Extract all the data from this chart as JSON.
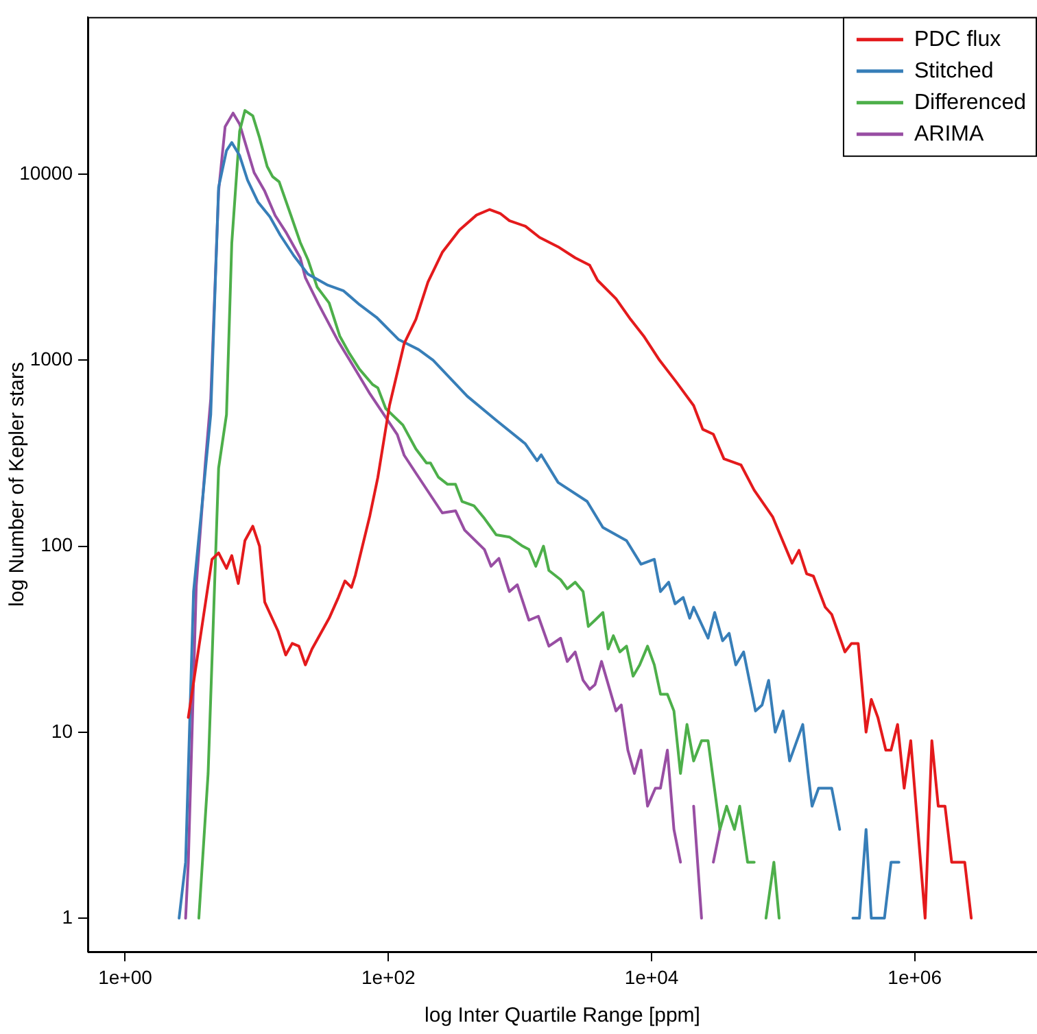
{
  "chart_data": {
    "type": "line",
    "xlabel": "log Inter Quartile Range [ppm]",
    "ylabel": "log Number of Kepler stars",
    "log": "xy",
    "grid": false,
    "legend": "top right",
    "marker": "none",
    "line_style": "solid",
    "xlim": [
      0.52,
      8500000
    ],
    "ylim": [
      0.66,
      70000
    ],
    "xticks": [
      {
        "value": 1,
        "label": "1e+00"
      },
      {
        "value": 100,
        "label": "1e+02"
      },
      {
        "value": 10000,
        "label": "1e+04"
      },
      {
        "value": 1000000,
        "label": "1e+06"
      }
    ],
    "yticks": [
      1,
      10,
      100,
      1000,
      10000
    ],
    "series": [
      {
        "name": "PDC flux",
        "color": "#e41a1c",
        "x": [
          3.02,
          4.57,
          5.13,
          5.89,
          6.46,
          7.24,
          8.13,
          9.33,
          10.5,
          11.5,
          14.5,
          16.6,
          18.6,
          20.9,
          23.4,
          26.3,
          35.5,
          41.7,
          46.8,
          52.5,
          56.2,
          72.4,
          83.2,
          102,
          132,
          162,
          200,
          257,
          347,
          468,
          589,
          708,
          832,
          1100,
          1410,
          1950,
          2630,
          3390,
          3890,
          5370,
          6920,
          8710,
          11500,
          15500,
          20900,
          24500,
          29500,
          35500,
          47900,
          60300,
          83200,
          117000,
          132000,
          151000,
          170000,
          209000,
          234000,
          295000,
          331000,
          372000,
          427000,
          468000,
          525000,
          603000,
          661000,
          741000,
          832000,
          933000,
          1200000,
          1350000,
          1510000,
          1700000,
          1910000,
          2400000,
          2690000
        ],
        "values": [
          12,
          85,
          92,
          76,
          89,
          63,
          107,
          128,
          100,
          50,
          35,
          26,
          30,
          29,
          23,
          28,
          41,
          53,
          65,
          60,
          70,
          146,
          234,
          570,
          1230,
          1660,
          2630,
          3800,
          5010,
          6030,
          6460,
          6150,
          5620,
          5250,
          4570,
          4070,
          3550,
          3240,
          2690,
          2140,
          1660,
          1350,
          1000,
          760,
          570,
          425,
          400,
          295,
          273,
          200,
          144,
          81,
          95,
          71,
          69,
          47,
          43,
          27,
          30,
          30,
          10,
          15,
          12,
          8,
          8,
          11,
          5,
          9,
          1,
          9,
          4,
          4,
          2,
          2,
          1
        ]
      },
      {
        "name": "Stitched",
        "color": "#377eb8",
        "x": [
          2.57,
          2.88,
          3.31,
          3.8,
          4.47,
          5.13,
          5.89,
          6.46,
          7.41,
          8.51,
          10.2,
          12.6,
          15.1,
          19.1,
          24.5,
          34.7,
          45.7,
          60.3,
          81.3,
          120,
          170,
          219,
          398,
          661,
          1100,
          1350,
          1450,
          1950,
          3240,
          4270,
          6460,
          8320,
          10500,
          11700,
          13500,
          15100,
          17400,
          19500,
          20900,
          26900,
          30200,
          34700,
          38900,
          43700,
          50100,
          61700,
          69200,
          77600,
          87100,
          100000,
          112000,
          141000,
          155000,
          166000,
          186000,
          234000,
          269000,
          305000,
          339000,
          380000,
          427000,
          468000,
          589000,
          661000,
          759000
        ],
        "values": [
          1,
          2,
          57,
          155,
          510,
          8500,
          13400,
          14800,
          12600,
          9300,
          7100,
          5900,
          4700,
          3650,
          2900,
          2530,
          2360,
          1990,
          1700,
          1290,
          1140,
          1000,
          640,
          475,
          355,
          288,
          310,
          220,
          174,
          126,
          107,
          80,
          85,
          57,
          64,
          49,
          53,
          41,
          47,
          32,
          44,
          31,
          34,
          23,
          27,
          13,
          14,
          19,
          10,
          13,
          7,
          11,
          6,
          4,
          5,
          5,
          3,
          null,
          1,
          1,
          3,
          1,
          1,
          2,
          2
        ]
      },
      {
        "name": "Differenced",
        "color": "#4daf4a",
        "x": [
          3.63,
          4.27,
          5.13,
          5.89,
          6.46,
          7.41,
          8.13,
          9.33,
          10.5,
          12,
          13.2,
          14.8,
          18.2,
          21.4,
          24.5,
          28.8,
          35.5,
          42.7,
          50.1,
          60.3,
          75.9,
          83.2,
          95.5,
          129,
          162,
          195,
          209,
          240,
          282,
          324,
          363,
          447,
          537,
          661,
          832,
          1050,
          1170,
          1320,
          1510,
          1660,
          2040,
          2290,
          2630,
          3020,
          3310,
          3720,
          4270,
          4680,
          5130,
          5750,
          6460,
          7240,
          8130,
          9330,
          10500,
          11700,
          13200,
          14800,
          16600,
          18600,
          20900,
          24000,
          26900,
          33100,
          37200,
          42700,
          46800,
          53700,
          60300,
          66100,
          74100,
          85100,
          93300
        ],
        "values": [
          1,
          6,
          263,
          510,
          4260,
          17000,
          22000,
          20600,
          15700,
          11000,
          9700,
          9100,
          6000,
          4300,
          3470,
          2470,
          2030,
          1350,
          1100,
          895,
          740,
          710,
          550,
          448,
          333,
          280,
          280,
          235,
          215,
          215,
          174,
          165,
          141,
          115,
          112,
          100,
          96,
          78,
          100,
          74,
          66,
          59,
          64,
          57,
          37,
          40,
          44,
          28,
          33,
          27,
          29,
          20,
          23,
          29,
          23,
          16,
          16,
          13,
          6,
          11,
          7,
          9,
          9,
          3,
          4,
          3,
          4,
          2,
          2,
          null,
          1,
          2,
          1
        ]
      },
      {
        "name": "ARIMA",
        "color": "#984ea3",
        "x": [
          2.88,
          3.02,
          3.47,
          4.07,
          4.47,
          5.13,
          5.75,
          6.61,
          7.41,
          9.55,
          11.5,
          13.8,
          16.6,
          21.4,
          23.4,
          29.5,
          41.7,
          56.2,
          72.4,
          117,
          132,
          162,
          257,
          324,
          380,
          537,
          603,
          692,
          832,
          955,
          1170,
          1380,
          1660,
          2040,
          2290,
          2630,
          3020,
          3390,
          3720,
          4170,
          5370,
          5890,
          6610,
          7410,
          8320,
          9330,
          10700,
          11700,
          13200,
          14800,
          16600,
          18600,
          20900,
          24000,
          26900,
          29500,
          33100
        ],
        "values": [
          1,
          2,
          61,
          282,
          620,
          8100,
          18000,
          21300,
          18600,
          10200,
          8100,
          6000,
          4900,
          3550,
          2780,
          2000,
          1260,
          890,
          660,
          398,
          308,
          247,
          151,
          155,
          122,
          96,
          78,
          86,
          57,
          62,
          40,
          42,
          29,
          32,
          24,
          27,
          19,
          17,
          18,
          24,
          13,
          14,
          8,
          6,
          8,
          4,
          5,
          5,
          8,
          3,
          2,
          null,
          4,
          1,
          null,
          2,
          3
        ]
      }
    ]
  }
}
